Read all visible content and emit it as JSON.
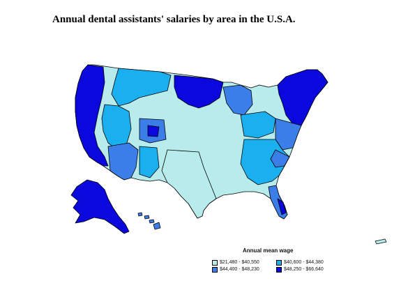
{
  "title": "Annual dental assistants' salaries by area in the U.S.A.",
  "legend": {
    "title": "Annual mean wage",
    "items": [
      {
        "label": "$21,480 - $40,550",
        "color": "#b8ecec"
      },
      {
        "label": "$40,600 - $44,380",
        "color": "#1ab0f0"
      },
      {
        "label": "$44,400 - $48,230",
        "color": "#3c7ee8"
      },
      {
        "label": "$48,250 - $66,640",
        "color": "#0a08dc"
      }
    ]
  },
  "colors": {
    "border": "#000000",
    "background": "#ffffff"
  }
}
